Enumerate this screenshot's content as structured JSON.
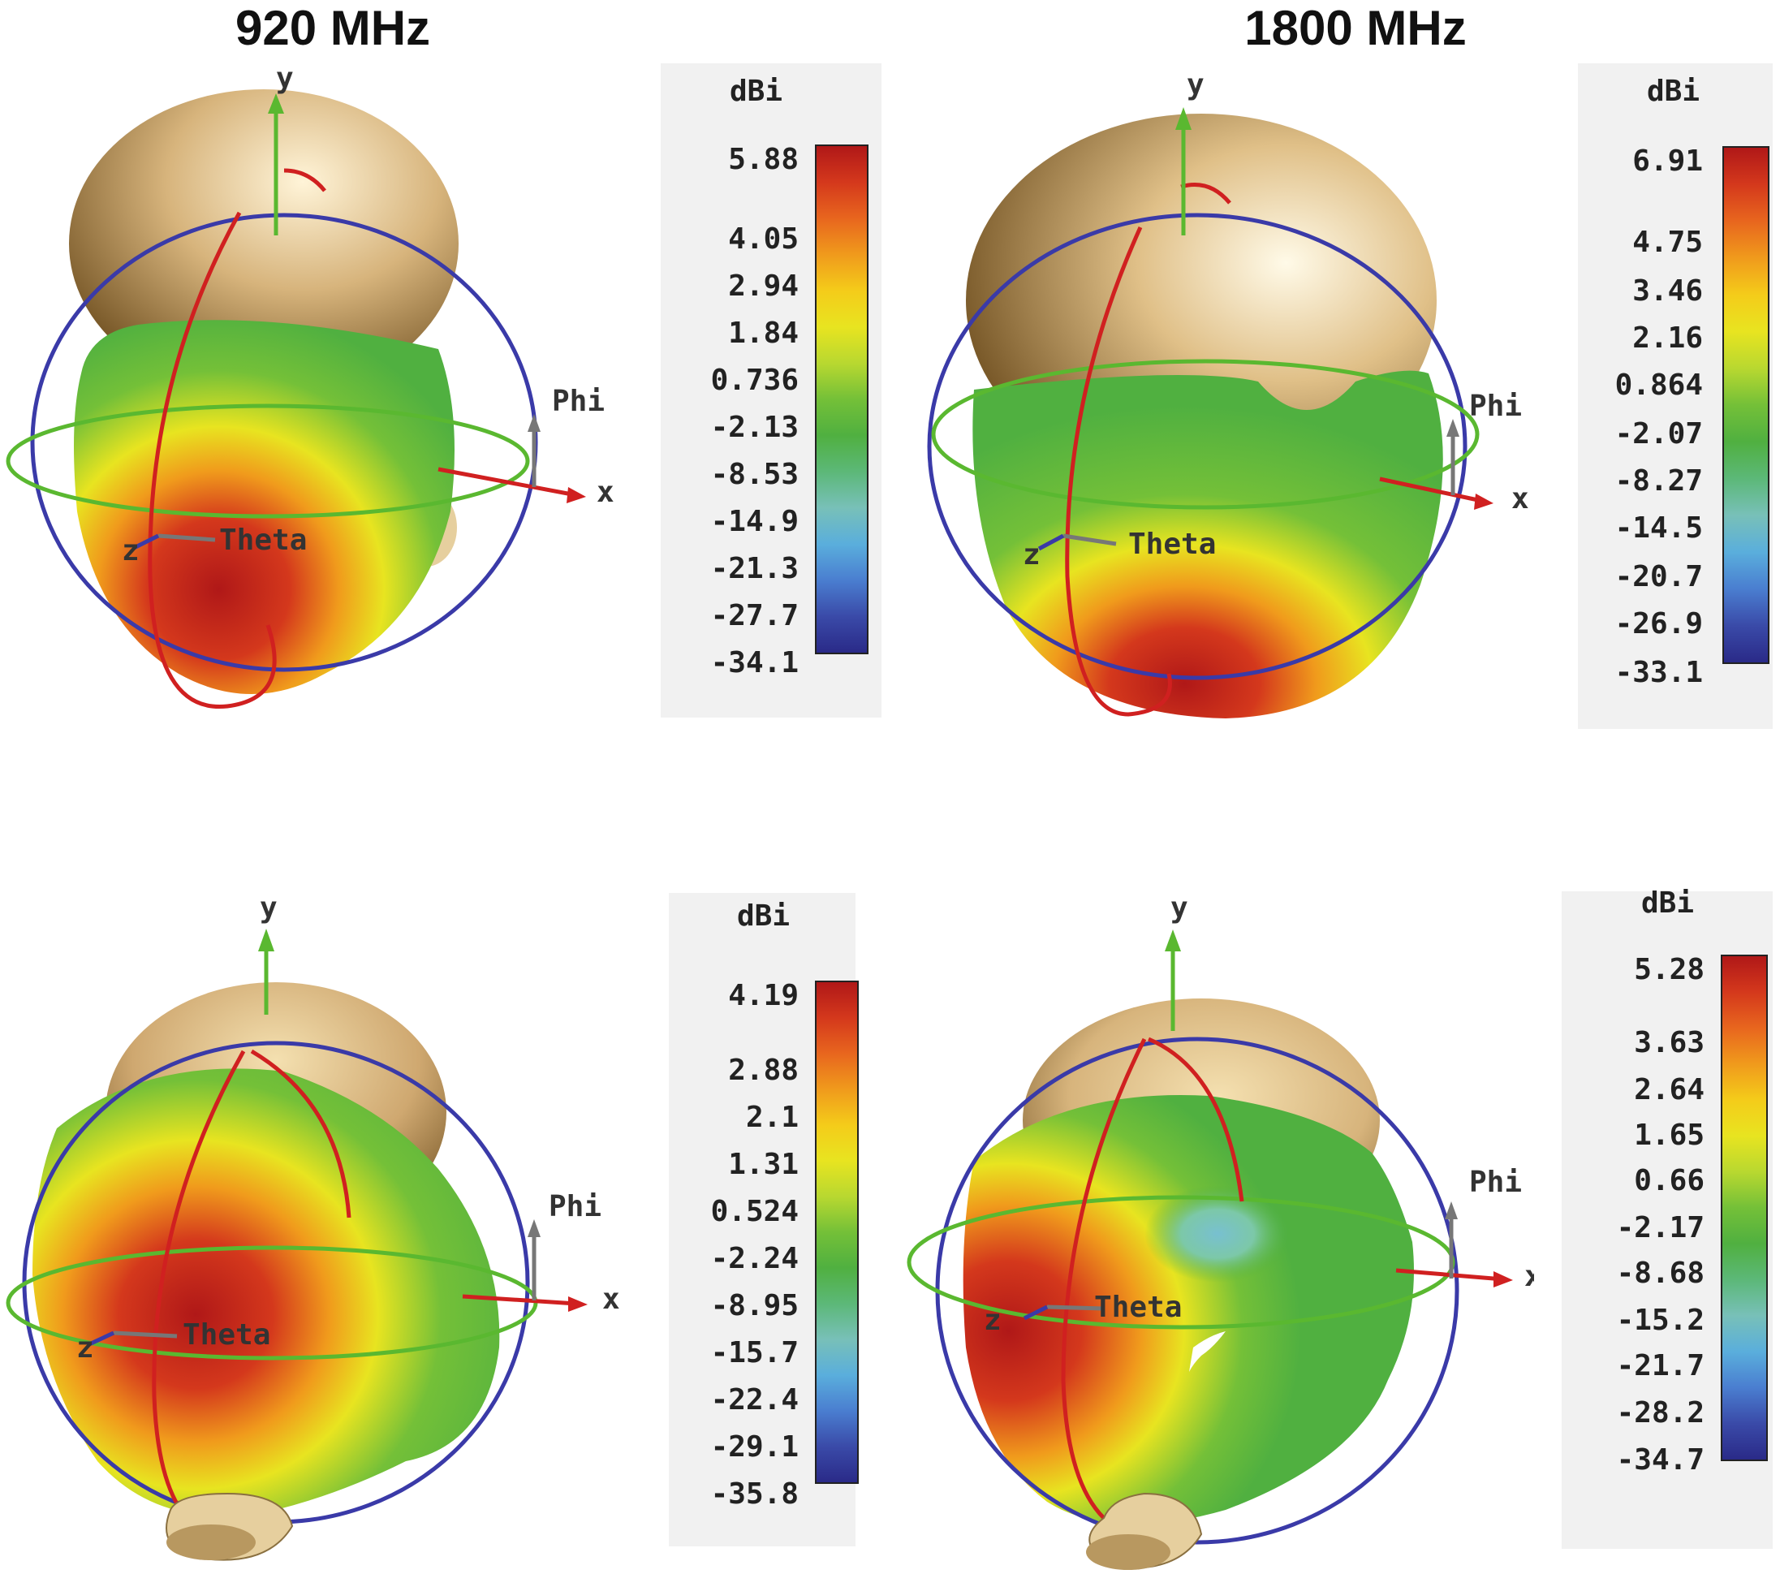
{
  "columns": [
    {
      "title": "920 MHz"
    },
    {
      "title": "1800 MHz"
    }
  ],
  "axis_labels": {
    "y": "y",
    "x": "x",
    "z": "z",
    "phi": "Phi",
    "theta": "Theta"
  },
  "panels": [
    {
      "unit": "dBi",
      "ticks": [
        "5.88",
        "4.05",
        "2.94",
        "1.84",
        "0.736",
        "-2.13",
        "-8.53",
        "-14.9",
        "-21.3",
        "-27.7",
        "-34.1"
      ]
    },
    {
      "unit": "dBi",
      "ticks": [
        "6.91",
        "4.75",
        "3.46",
        "2.16",
        "0.864",
        "-2.07",
        "-8.27",
        "-14.5",
        "-20.7",
        "-26.9",
        "-33.1"
      ]
    },
    {
      "unit": "dBi",
      "ticks": [
        "4.19",
        "2.88",
        "2.1",
        "1.31",
        "0.524",
        "-2.24",
        "-8.95",
        "-15.7",
        "-22.4",
        "-29.1",
        "-35.8"
      ]
    },
    {
      "unit": "dBi",
      "ticks": [
        "5.28",
        "3.63",
        "2.64",
        "1.65",
        "0.66",
        "-2.17",
        "-8.68",
        "-15.2",
        "-21.7",
        "-28.2",
        "-34.7"
      ]
    }
  ],
  "colors": {
    "colorbar_stops": [
      "#b01818",
      "#d4381c",
      "#e8661e",
      "#f09a1c",
      "#f4cc1a",
      "#e8e420",
      "#b8d830",
      "#74c038",
      "#50b040",
      "#5cb878",
      "#78c0b8",
      "#5aaedc",
      "#4a7ed0",
      "#3a4aa8",
      "#2a2a88"
    ],
    "head": "#d7b47c",
    "blue_circle": "#3a3aa8",
    "red_circle": "#d02020",
    "green_circle": "#5ab830",
    "y_axis": "#5ab830",
    "x_axis": "#d02020",
    "z_axis": "#3a3aa8",
    "phi_arrow": "#777777",
    "theta_arrow": "#777777"
  }
}
